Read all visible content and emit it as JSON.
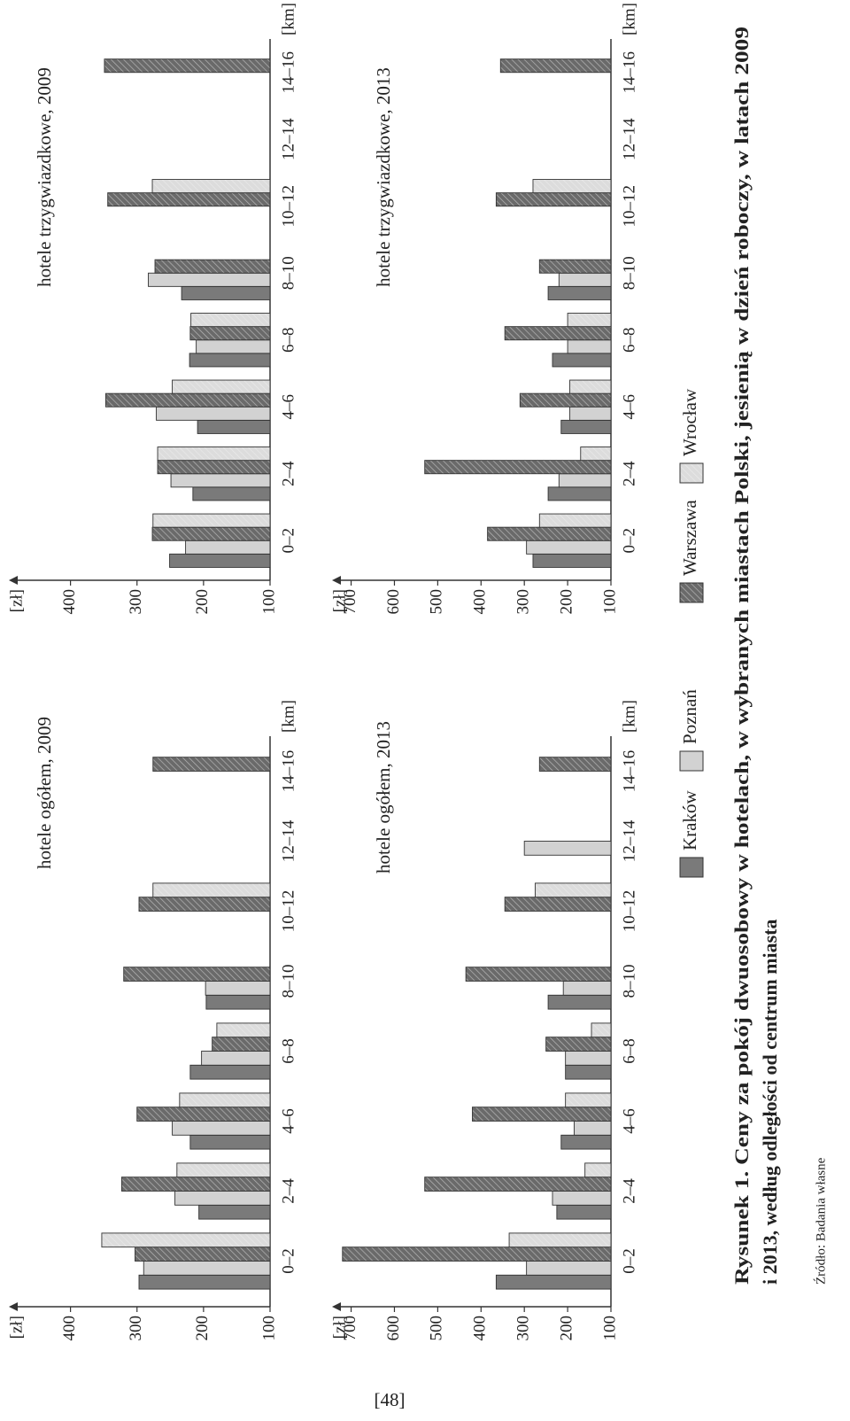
{
  "chart_data": [
    {
      "type": "bar",
      "title": "hotele ogółem, 2009",
      "y_label": "[zł]",
      "x_label": "[km]",
      "categories": [
        "0–2",
        "2–4",
        "4–6",
        "6–8",
        "8–10",
        "10–12",
        "12–14",
        "14–16"
      ],
      "series": [
        {
          "name": "Kraków",
          "color": "#7a7a7a",
          "hatch": false,
          "values": [
            297,
            207,
            220,
            220,
            196,
            null,
            null,
            null
          ]
        },
        {
          "name": "Poznań",
          "color": "#d2d2d2",
          "hatch": false,
          "values": [
            290,
            243,
            247,
            203,
            197,
            null,
            null,
            null
          ]
        },
        {
          "name": "Warszawa",
          "color": "#6a6a6a",
          "hatch": true,
          "values": [
            303,
            323,
            300,
            187,
            320,
            297,
            null,
            276
          ]
        },
        {
          "name": "Wrocław",
          "color": "#dcdcdc",
          "hatch": true,
          "values": [
            353,
            240,
            236,
            180,
            null,
            276,
            null,
            null
          ]
        }
      ],
      "ylim": [
        100,
        490
      ],
      "yticks": [
        100,
        200,
        300,
        400
      ]
    },
    {
      "type": "bar",
      "title": "hotele trzygwiazdkowe, 2009",
      "y_label": "[zł]",
      "x_label": "[km]",
      "categories": [
        "0–2",
        "2–4",
        "4–6",
        "6–8",
        "8–10",
        "10–12",
        "12–14",
        "14–16"
      ],
      "series": [
        {
          "name": "Kraków",
          "color": "#7a7a7a",
          "hatch": false,
          "values": [
            251,
            216,
            209,
            221,
            233,
            null,
            null,
            null
          ]
        },
        {
          "name": "Poznań",
          "color": "#d2d2d2",
          "hatch": false,
          "values": [
            227,
            249,
            271,
            211,
            283,
            null,
            null,
            null
          ]
        },
        {
          "name": "Warszawa",
          "color": "#6a6a6a",
          "hatch": true,
          "values": [
            277,
            269,
            347,
            220,
            273,
            344,
            null,
            349
          ]
        },
        {
          "name": "Wrocław",
          "color": "#dcdcdc",
          "hatch": true,
          "values": [
            276,
            269,
            247,
            219,
            null,
            277,
            null,
            null
          ]
        }
      ],
      "ylim": [
        100,
        490
      ],
      "yticks": [
        100,
        200,
        300,
        400
      ]
    },
    {
      "type": "bar",
      "title": "hotele ogółem, 2013",
      "y_label": "[zł]",
      "x_label": "[km]",
      "categories": [
        "0–2",
        "2–4",
        "4–6",
        "6–8",
        "8–10",
        "10–12",
        "12–14",
        "14–16"
      ],
      "series": [
        {
          "name": "Kraków",
          "color": "#7a7a7a",
          "hatch": false,
          "values": [
            365,
            225,
            215,
            205,
            245,
            null,
            null,
            null
          ]
        },
        {
          "name": "Poznań",
          "color": "#d2d2d2",
          "hatch": false,
          "values": [
            295,
            235,
            185,
            205,
            210,
            null,
            300,
            null
          ]
        },
        {
          "name": "Warszawa",
          "color": "#6a6a6a",
          "hatch": true,
          "values": [
            720,
            530,
            420,
            250,
            435,
            345,
            null,
            265
          ]
        },
        {
          "name": "Wrocław",
          "color": "#dcdcdc",
          "hatch": true,
          "values": [
            335,
            160,
            205,
            145,
            null,
            275,
            null,
            null
          ]
        }
      ],
      "ylim": [
        100,
        740
      ],
      "yticks": [
        100,
        200,
        300,
        400,
        500,
        600,
        700
      ]
    },
    {
      "type": "bar",
      "title": "hotele trzygwiazdkowe, 2013",
      "y_label": "[zł]",
      "x_label": "[km]",
      "categories": [
        "0–2",
        "2–4",
        "4–6",
        "6–8",
        "8–10",
        "10–12",
        "12–14",
        "14–16"
      ],
      "series": [
        {
          "name": "Kraków",
          "color": "#7a7a7a",
          "hatch": false,
          "values": [
            280,
            245,
            215,
            235,
            245,
            null,
            null,
            null
          ]
        },
        {
          "name": "Poznań",
          "color": "#d2d2d2",
          "hatch": false,
          "values": [
            295,
            220,
            195,
            200,
            220,
            null,
            null,
            null
          ]
        },
        {
          "name": "Warszawa",
          "color": "#6a6a6a",
          "hatch": true,
          "values": [
            385,
            530,
            310,
            345,
            265,
            365,
            null,
            355
          ]
        },
        {
          "name": "Wrocław",
          "color": "#dcdcdc",
          "hatch": true,
          "values": [
            265,
            170,
            195,
            200,
            null,
            280,
            null,
            null
          ]
        }
      ],
      "ylim": [
        100,
        740
      ],
      "yticks": [
        100,
        200,
        300,
        400,
        500,
        600,
        700
      ]
    }
  ],
  "caption_lines": [
    "Rysunek 1. Ceny za pokój dwuosobowy w hotelach, w wybranych miastach Polski, jesienią w dzień roboczy, w latach 2009",
    "i 2013, według odległości od centrum miasta"
  ],
  "source": "Źródło: Badania własne",
  "page_number": "[48]"
}
